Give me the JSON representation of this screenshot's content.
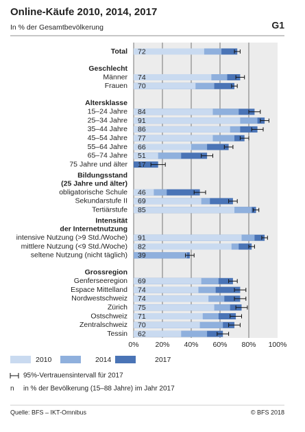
{
  "chart_data": {
    "type": "bar",
    "orientation": "horizontal",
    "layout": "overlapped",
    "title": "Online-Käufe 2010, 2014, 2017",
    "subtitle": "In % der Gesamtbevölkerung",
    "figure_id": "G1",
    "groups": [
      {
        "title": [],
        "categories": [
          "Total"
        ]
      },
      {
        "title": [
          "Geschlecht"
        ],
        "categories": [
          "Männer",
          "Frauen"
        ]
      },
      {
        "title": [
          "Altersklasse"
        ],
        "categories": [
          "15–24 Jahre",
          "25–34 Jahre",
          "35–44 Jahre",
          "45–54 Jahre",
          "55–64 Jahre",
          "65–74 Jahre",
          "75 Jahre und älter"
        ]
      },
      {
        "title": [
          "Bildungsstand",
          "(25 Jahre und älter)"
        ],
        "categories": [
          "obligatorische Schule",
          "Sekundarstufe II",
          "Tertiärstufe"
        ]
      },
      {
        "title": [
          "Intensität",
          "der Internetnutzung"
        ],
        "categories": [
          "intensive Nutzung (>9 Std./Woche)",
          "mittlere Nutzung (<9 Std./Woche)",
          "seltene Nutzung (nicht täglich)"
        ]
      },
      {
        "title": [
          "Grossregion"
        ],
        "categories": [
          "Genferseeregion",
          "Espace Mittelland",
          "Nordwestschweiz",
          "Zürich",
          "Ostschweiz",
          "Zentralschweiz",
          "Tessin"
        ]
      }
    ],
    "series": [
      {
        "name": "2010",
        "color": "#c9daf0",
        "values": [
          49,
          54,
          43,
          55,
          74,
          67,
          55,
          40,
          17,
          null,
          14,
          47,
          70,
          75,
          68,
          null,
          47,
          45,
          52,
          56,
          48,
          46,
          33
        ]
      },
      {
        "name": "2014",
        "color": "#8fb0dd",
        "values": [
          61,
          65,
          56,
          73,
          86,
          74,
          70,
          51,
          33,
          null,
          23,
          53,
          82,
          84,
          73,
          37,
          59,
          57,
          63,
          67,
          59,
          62,
          51
        ]
      },
      {
        "name": "2017",
        "color": "#4a74b6",
        "values": [
          72,
          74,
          70,
          84,
          91,
          86,
          77,
          66,
          51,
          17,
          46,
          69,
          85,
          91,
          82,
          39,
          69,
          74,
          74,
          75,
          71,
          70,
          62
        ],
        "errors": [
          2,
          3,
          2,
          4,
          3,
          4,
          3,
          3,
          4,
          5,
          4,
          3,
          2,
          2,
          2,
          3,
          3,
          4,
          4,
          4,
          4,
          4,
          4
        ]
      }
    ],
    "xlim": [
      0,
      100
    ],
    "xticks": [
      {
        "value": 0,
        "label": "0%"
      },
      {
        "value": 20,
        "label": "20%"
      },
      {
        "value": 40,
        "label": "40%"
      },
      {
        "value": 60,
        "label": "60%"
      },
      {
        "value": 80,
        "label": "80%"
      },
      {
        "value": 100,
        "label": "100%"
      }
    ],
    "grid": true,
    "error_legend": "95%-Vertrauensintervall für 2017",
    "label_note_symbol": "n",
    "label_note": "in % der Bevölkerung (15–88 Jahre) im Jahr 2017",
    "source": "Quelle: BFS – IKT-Omnibus",
    "copyright": "© BFS 2018"
  }
}
